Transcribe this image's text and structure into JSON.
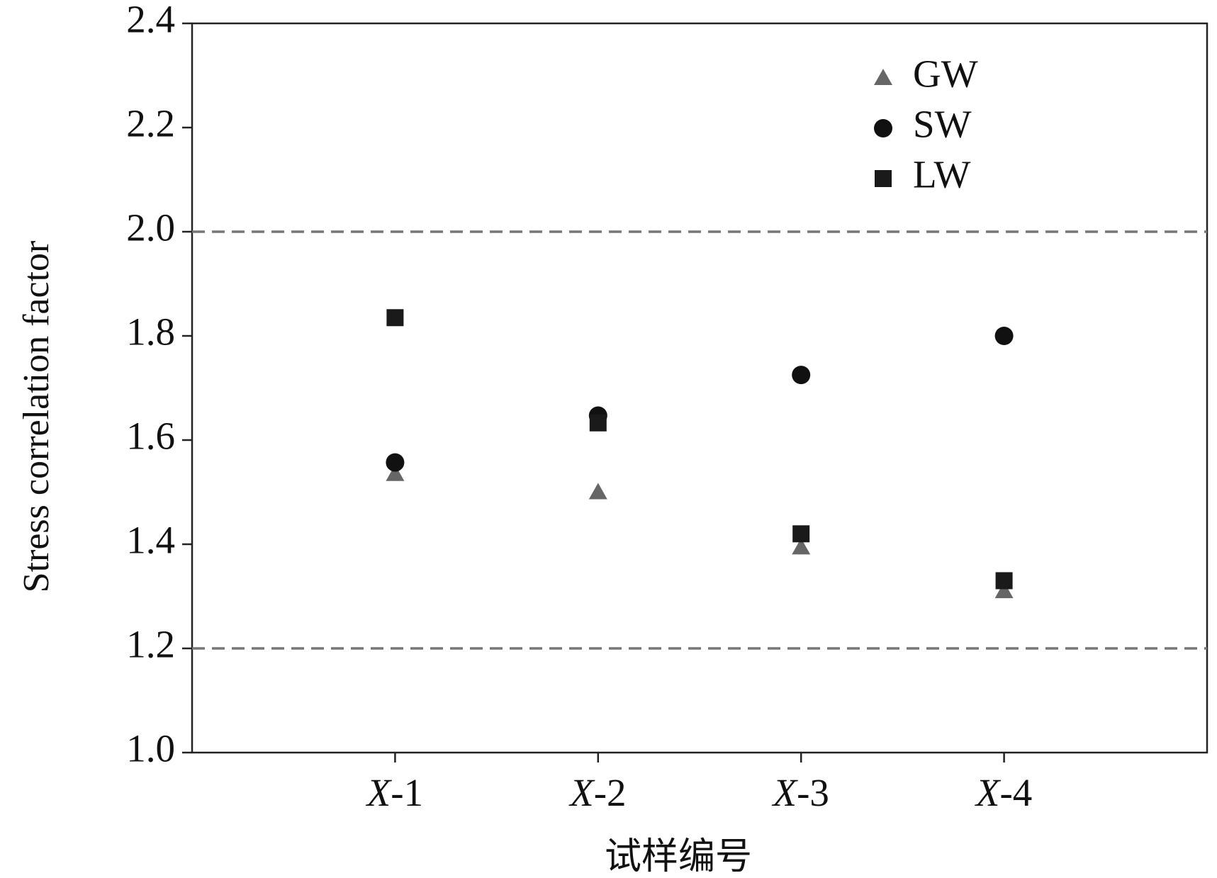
{
  "chart_data": {
    "type": "scatter",
    "x_label": "试样编号",
    "y_label": "Stress correlation factor",
    "categories": [
      "X-1",
      "X-2",
      "X-3",
      "X-4"
    ],
    "series": [
      {
        "name": "GW",
        "color": "#666666",
        "marker": "triangle",
        "values": [
          1.535,
          1.5,
          1.394,
          1.31
        ]
      },
      {
        "name": "SW",
        "color": "#111111",
        "marker": "circle",
        "values": [
          1.557,
          1.647,
          1.725,
          1.8
        ]
      },
      {
        "name": "LW",
        "color": "#1a1a1a",
        "marker": "square",
        "values": [
          1.835,
          1.633,
          1.42,
          1.33
        ]
      }
    ],
    "ylim": [
      1.0,
      2.4
    ],
    "yticks": [
      {
        "value": 1,
        "label": "1.0"
      },
      1.2,
      1.4,
      1.6,
      1.8,
      {
        "value": 2,
        "label": "2.0"
      },
      2.2,
      2.4
    ],
    "reference_lines": [
      2,
      1.2
    ],
    "grid": false,
    "legend": "upper-right"
  }
}
